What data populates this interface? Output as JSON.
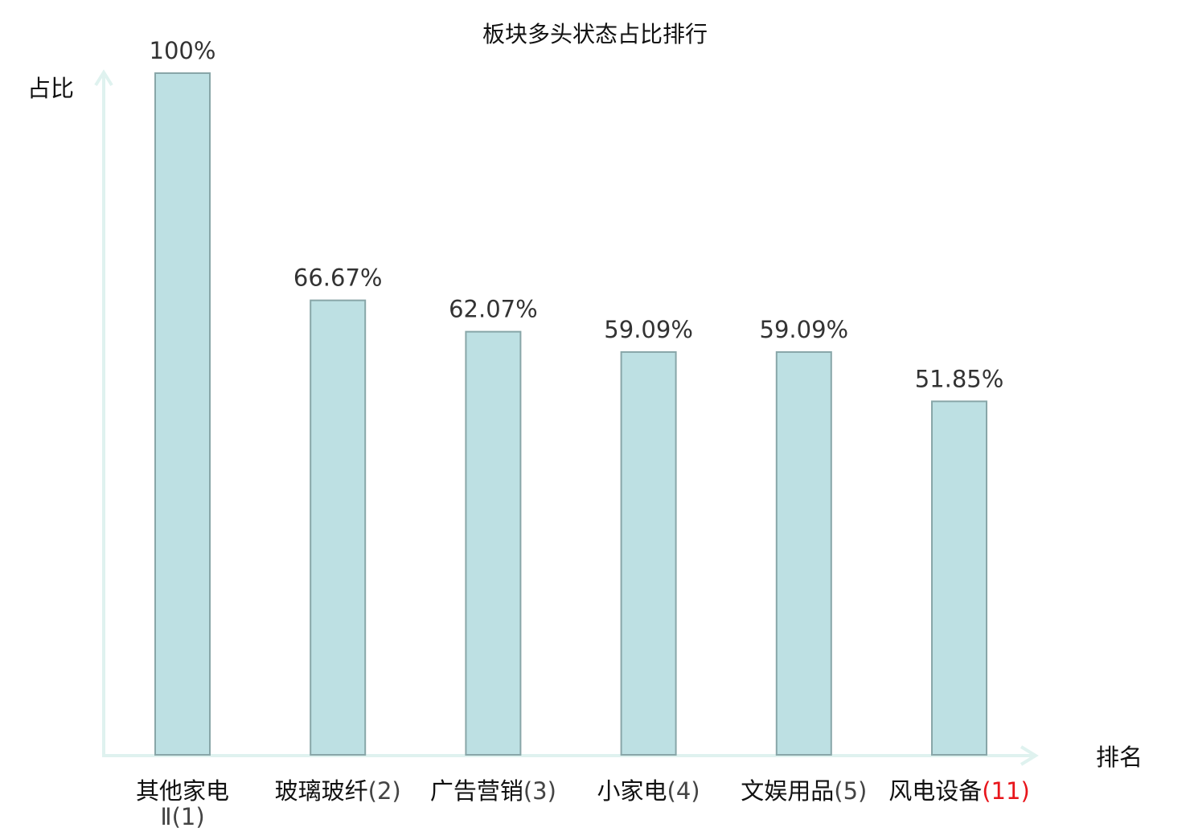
{
  "chart_data": {
    "type": "bar",
    "title": "板块多头状态占比排行",
    "xlabel": "排名",
    "ylabel": "占比",
    "ylim": [
      0,
      100
    ],
    "grid": false,
    "categories": [
      {
        "name": "其他家电Ⅱ",
        "rank": "(1)",
        "highlight": false
      },
      {
        "name": "玻璃玻纤",
        "rank": "(2)",
        "highlight": false
      },
      {
        "name": "广告营销",
        "rank": "(3)",
        "highlight": false
      },
      {
        "name": "小家电",
        "rank": "(4)",
        "highlight": false
      },
      {
        "name": "文娱用品",
        "rank": "(5)",
        "highlight": false
      },
      {
        "name": "风电设备",
        "rank": "(11)",
        "highlight": true
      }
    ],
    "values": [
      100,
      66.67,
      62.07,
      59.09,
      59.09,
      51.85
    ],
    "data_labels": [
      "100%",
      "66.67%",
      "62.07%",
      "59.09%",
      "59.09%",
      "51.85%"
    ],
    "colors": {
      "bar_fill": "#bde0e3",
      "bar_stroke": "#88a6a8",
      "axis": "#dff2ef",
      "highlight_text": "#e8151b",
      "normal_text": "#111111"
    }
  }
}
